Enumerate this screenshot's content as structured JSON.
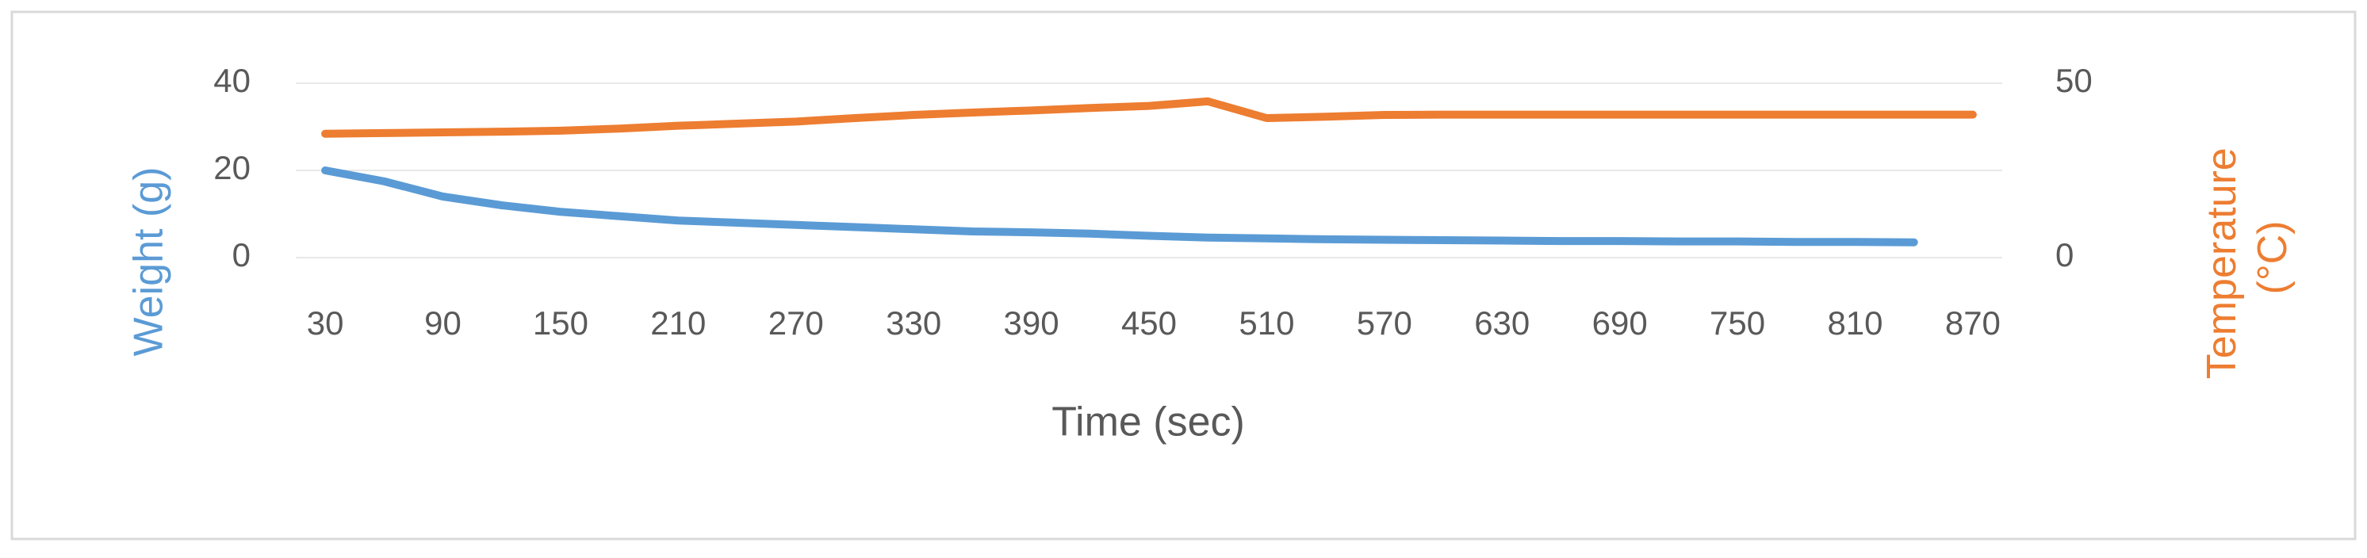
{
  "chart_data": {
    "type": "line",
    "x_label": "Time (sec)",
    "y_label": "Weight (g)",
    "y2_label": "Temperature (°C)",
    "x": [
      30,
      60,
      90,
      120,
      150,
      180,
      210,
      240,
      270,
      300,
      330,
      360,
      390,
      420,
      450,
      480,
      510,
      540,
      570,
      600,
      630,
      660,
      690,
      720,
      750,
      780,
      810,
      840,
      870
    ],
    "xlim": [
      15,
      885
    ],
    "xticks": [
      30,
      90,
      150,
      210,
      270,
      330,
      390,
      450,
      510,
      570,
      630,
      690,
      750,
      810,
      870
    ],
    "ylim": [
      0,
      40
    ],
    "yticks": [
      0,
      20,
      40
    ],
    "y2lim": [
      0,
      50
    ],
    "y2ticks": [
      0,
      50
    ],
    "grid": true,
    "series": [
      {
        "color": "#5b9bd5",
        "values": [
          20,
          17.5,
          14,
          12,
          10.5,
          9.5,
          8.5,
          8,
          7.5,
          7,
          6.5,
          6,
          5.8,
          5.5,
          5,
          4.6,
          4.4,
          4.2,
          4.1,
          4,
          3.9,
          3.8,
          3.8,
          3.7,
          3.7,
          3.6,
          3.6,
          3.5,
          null
        ]
      },
      {
        "color": "#ed7d31",
        "axis": "y2",
        "values": [
          35.5,
          35.7,
          35.9,
          36.1,
          36.4,
          37,
          37.8,
          38.4,
          39,
          40,
          40.9,
          41.6,
          42.2,
          42.9,
          43.5,
          44.8,
          40,
          40.4,
          40.9,
          41,
          41,
          41,
          41,
          41,
          41,
          41,
          41,
          41,
          41
        ]
      }
    ]
  }
}
